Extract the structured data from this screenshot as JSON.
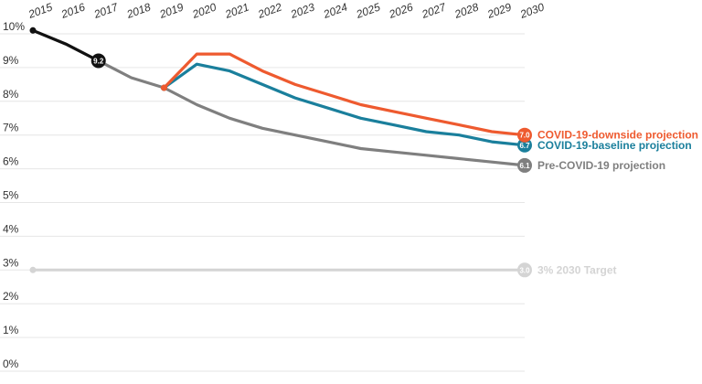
{
  "chart_data": {
    "type": "line",
    "title": "",
    "xlabel": "",
    "ylabel": "",
    "x": [
      2015,
      2016,
      2017,
      2018,
      2019,
      2020,
      2021,
      2022,
      2023,
      2024,
      2025,
      2026,
      2027,
      2028,
      2029,
      2030
    ],
    "x_tick_labels": [
      "2015",
      "2016",
      "2017",
      "2018",
      "2019",
      "2020",
      "2021",
      "2022",
      "2023",
      "2024",
      "2025",
      "2026",
      "2027",
      "2028",
      "2029",
      "2030"
    ],
    "y_tick_labels": [
      "0%",
      "1%",
      "2%",
      "3%",
      "4%",
      "5%",
      "6%",
      "7%",
      "8%",
      "9%",
      "10%"
    ],
    "ylim": [
      0,
      10
    ],
    "xlim": [
      2015,
      2030
    ],
    "grid": true,
    "series": [
      {
        "name": "Pre-COVID-19 projection",
        "color": "#7f7f7f",
        "x": [
          2015,
          2016,
          2017,
          2018,
          2019,
          2020,
          2021,
          2022,
          2023,
          2024,
          2025,
          2026,
          2027,
          2028,
          2029,
          2030
        ],
        "values": [
          10.1,
          9.7,
          9.2,
          8.7,
          8.4,
          7.9,
          7.5,
          7.2,
          7.0,
          6.8,
          6.6,
          6.5,
          6.4,
          6.3,
          6.2,
          6.1
        ],
        "end_label": "6.1"
      },
      {
        "name": "COVID-19-baseline projection",
        "color": "#1a7f9c",
        "x": [
          2019,
          2020,
          2021,
          2022,
          2023,
          2024,
          2025,
          2026,
          2027,
          2028,
          2029,
          2030
        ],
        "values": [
          8.4,
          9.1,
          8.9,
          8.5,
          8.1,
          7.8,
          7.5,
          7.3,
          7.1,
          7.0,
          6.8,
          6.7
        ],
        "end_label": "6.7"
      },
      {
        "name": "COVID-19-downside projection",
        "color": "#ee5a2f",
        "x": [
          2019,
          2020,
          2021,
          2022,
          2023,
          2024,
          2025,
          2026,
          2027,
          2028,
          2029,
          2030
        ],
        "values": [
          8.4,
          9.4,
          9.4,
          8.9,
          8.5,
          8.2,
          7.9,
          7.7,
          7.5,
          7.3,
          7.1,
          7.0
        ],
        "end_label": "7.0"
      },
      {
        "name": "3% 2030 Target",
        "color": "#d4d4d4",
        "x": [
          2015,
          2030
        ],
        "values": [
          3.0,
          3.0
        ],
        "end_label": "3.0"
      }
    ],
    "historical": {
      "color": "#111111",
      "x": [
        2015,
        2016,
        2017
      ],
      "values": [
        10.1,
        9.7,
        9.2
      ],
      "point_label": "9.2"
    }
  }
}
